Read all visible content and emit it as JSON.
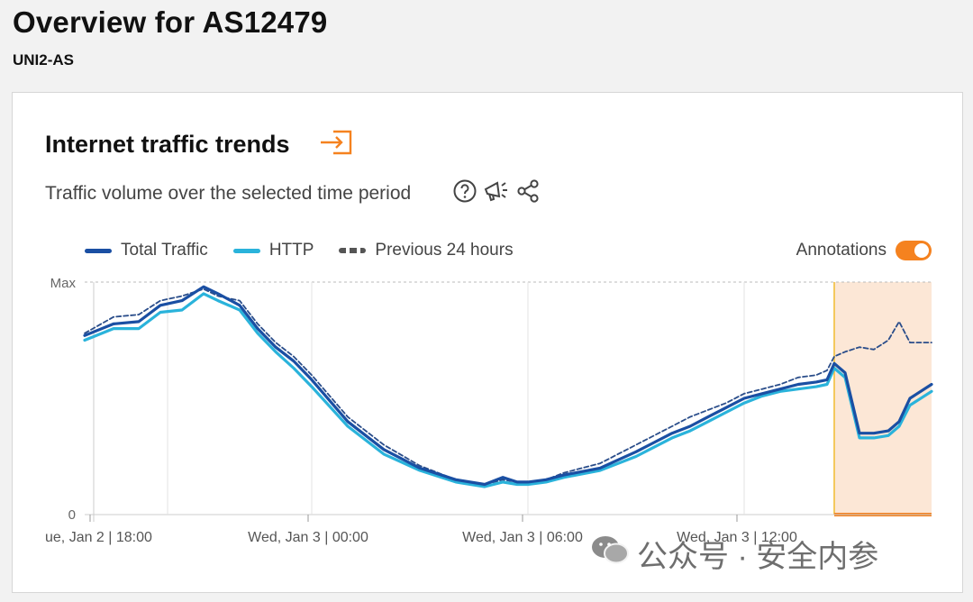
{
  "page": {
    "title": "Overview for AS12479",
    "subtitle": "UNI2-AS"
  },
  "card": {
    "title": "Internet traffic trends",
    "description": "Traffic volume over the selected time period",
    "icons": [
      "external-link-icon",
      "help-icon",
      "megaphone-icon",
      "share-icon"
    ]
  },
  "legend": {
    "total_traffic": "Total Traffic",
    "http": "HTTP",
    "previous": "Previous 24 hours",
    "annotations_label": "Annotations",
    "annotations_on": true
  },
  "colors": {
    "total": "#1a4fa3",
    "http": "#2ab3db",
    "previous": "#2a4d8a",
    "accent": "#f5821f",
    "annotation_fill": "#fbe3cf"
  },
  "watermark": "公众号 · 安全内参",
  "chart_data": {
    "type": "line",
    "y_tick_labels": [
      "Max",
      "0"
    ],
    "ylim": [
      0,
      100
    ],
    "x_tick_labels": [
      "ue, Jan 2 | 18:00",
      "Wed, Jan 3 | 00:00",
      "Wed, Jan 3 | 06:00",
      "Wed, Jan 3 | 12:00"
    ],
    "x_ticks_at_hour": [
      0,
      6,
      12,
      18
    ],
    "x_start_hour": -0.3,
    "x_end_hour": 23.2,
    "annotation_range_hours": [
      20.5,
      23.2
    ],
    "series": [
      {
        "name": "Total Traffic",
        "x": [
          -0.3,
          0.5,
          1.2,
          1.8,
          2.4,
          3.0,
          3.4,
          4.0,
          4.5,
          5.0,
          5.5,
          6.0,
          7.0,
          8.0,
          9.0,
          10.0,
          10.8,
          11.3,
          11.7,
          12.0,
          12.5,
          13.0,
          14.0,
          15.0,
          15.5,
          16.0,
          16.5,
          17.0,
          17.5,
          18.0,
          18.5,
          19.0,
          19.5,
          20.0,
          20.3,
          20.5,
          20.8,
          21.2,
          21.6,
          22.0,
          22.3,
          22.6,
          23.2
        ],
        "y": [
          77,
          82,
          83,
          90,
          92,
          98,
          95,
          90,
          80,
          72,
          66,
          58,
          40,
          28,
          20,
          15,
          13,
          16,
          14,
          14,
          15,
          17,
          20,
          27,
          31,
          35,
          38,
          42,
          46,
          50,
          52,
          54,
          56,
          57,
          58,
          65,
          61,
          35,
          35,
          36,
          40,
          50,
          56
        ]
      },
      {
        "name": "HTTP",
        "x": [
          -0.3,
          0.5,
          1.2,
          1.8,
          2.4,
          3.0,
          3.4,
          4.0,
          4.5,
          5.0,
          5.5,
          6.0,
          7.0,
          8.0,
          9.0,
          10.0,
          10.8,
          11.3,
          11.7,
          12.0,
          12.5,
          13.0,
          14.0,
          15.0,
          15.5,
          16.0,
          16.5,
          17.0,
          17.5,
          18.0,
          18.5,
          19.0,
          19.5,
          20.0,
          20.3,
          20.5,
          20.8,
          21.2,
          21.6,
          22.0,
          22.3,
          22.6,
          23.2
        ],
        "y": [
          75,
          80,
          80,
          87,
          88,
          95,
          92,
          88,
          78,
          70,
          63,
          55,
          38,
          26,
          19,
          14,
          12,
          14,
          13,
          13,
          14,
          16,
          19,
          25,
          29,
          33,
          36,
          40,
          44,
          48,
          51,
          53,
          54,
          55,
          56,
          63,
          59,
          33,
          33,
          34,
          38,
          47,
          53
        ]
      },
      {
        "name": "Previous 24 hours",
        "x": [
          -0.3,
          0.5,
          1.2,
          1.8,
          2.4,
          3.0,
          3.4,
          4.0,
          4.5,
          5.0,
          5.5,
          6.0,
          7.0,
          8.0,
          9.0,
          10.0,
          10.8,
          11.3,
          11.7,
          12.0,
          12.5,
          13.0,
          14.0,
          15.0,
          15.5,
          16.0,
          16.5,
          17.0,
          17.5,
          18.0,
          18.5,
          19.0,
          19.5,
          20.0,
          20.3,
          20.5,
          20.8,
          21.2,
          21.6,
          22.0,
          22.3,
          22.6,
          23.2
        ],
        "y": [
          78,
          85,
          86,
          92,
          94,
          97,
          94,
          92,
          82,
          74,
          68,
          60,
          42,
          30,
          21,
          15,
          13,
          15,
          14,
          14,
          15,
          18,
          22,
          30,
          34,
          38,
          42,
          45,
          48,
          52,
          54,
          56,
          59,
          60,
          62,
          68,
          70,
          72,
          71,
          75,
          83,
          74,
          74
        ]
      }
    ]
  }
}
